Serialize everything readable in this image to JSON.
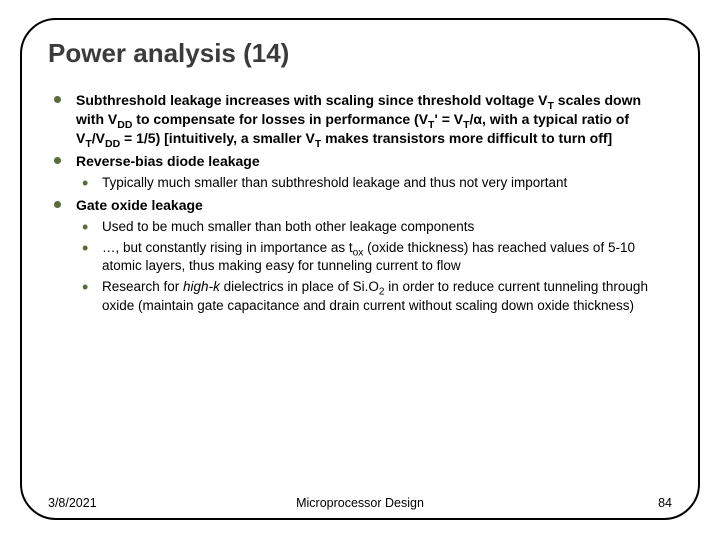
{
  "title": "Power analysis (14)",
  "items": [
    {
      "html": "Subthreshold leakage increases with scaling since threshold voltage V<sub>T</sub> scales down with V<sub>DD</sub> to compensate for losses in performance (V<sub>T</sub>' = V<sub>T</sub>/α, with a typical ratio of V<sub>T</sub>/V<sub>DD</sub> = 1/5) [intuitively, a smaller V<sub>T</sub> makes transistors more difficult to turn off]",
      "bold": true
    },
    {
      "html": "Reverse-bias diode leakage",
      "bold": true,
      "sub": [
        {
          "html": "Typically much smaller than subthreshold leakage and thus not very important"
        }
      ]
    },
    {
      "html": "Gate oxide leakage",
      "bold": true,
      "sub": [
        {
          "html": "Used to be much smaller than both other leakage components"
        },
        {
          "html": "…, but constantly rising in importance as t<sub>ox</sub> (oxide thickness) has reached values of 5-10 atomic layers, thus making easy for tunneling current to flow"
        },
        {
          "html": "Research for <i>high-k</i> dielectrics in place of Si.O<sub>2</sub> in order to reduce current tunneling through oxide (maintain gate capacitance and drain current without scaling down oxide thickness)"
        }
      ]
    }
  ],
  "footer": {
    "date": "3/8/2021",
    "center": "Microprocessor Design",
    "page": "84"
  },
  "colors": {
    "bullet": "#5a6b3a",
    "title": "#3b3b3b",
    "text": "#000000",
    "border": "#000000",
    "background": "#ffffff"
  }
}
